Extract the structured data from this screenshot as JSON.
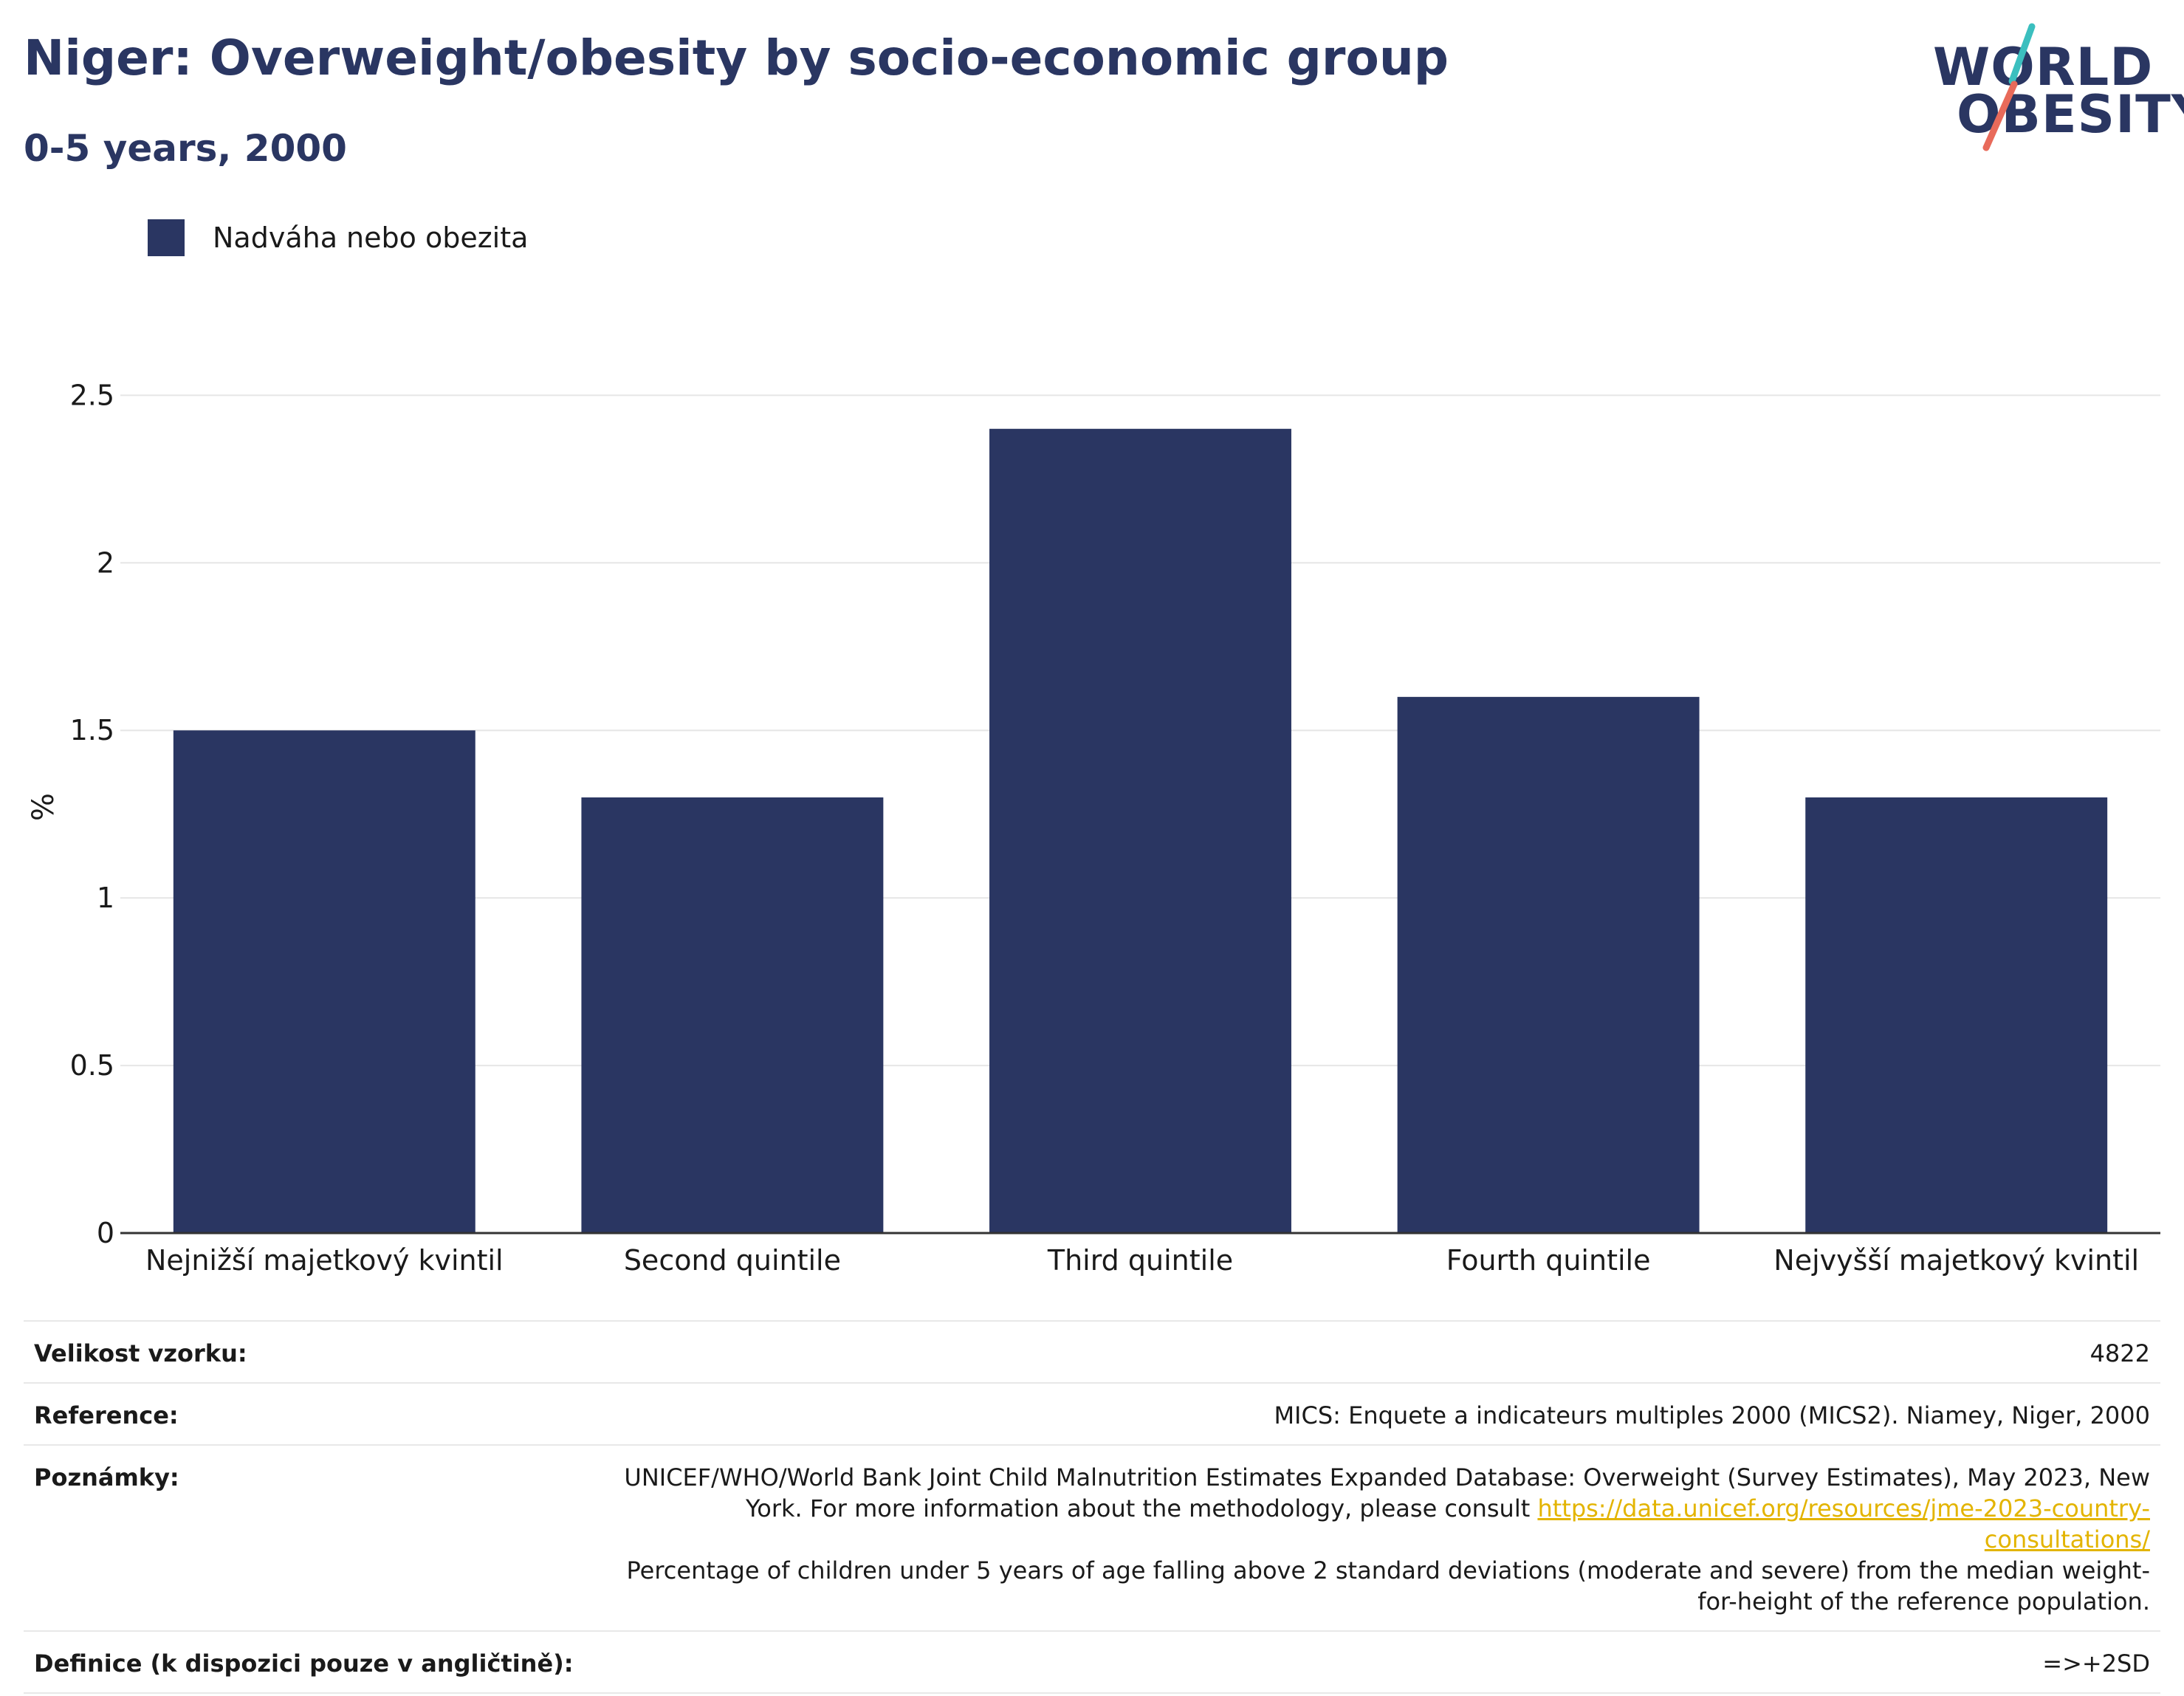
{
  "header": {
    "title": "Niger: Overweight/obesity by socio-economic group",
    "subtitle": "0-5 years, 2000"
  },
  "logo": {
    "line1": "WORLD",
    "line2": "OBESITY",
    "colors": {
      "text": "#2a3662",
      "teal": "#3bbfbf",
      "coral": "#e86a5a"
    }
  },
  "colors": {
    "bar": "#2a3662",
    "grid": "#e6e6e6",
    "axis": "#333333",
    "link": "#e3b400"
  },
  "legend": {
    "label": "Nadváha nebo obezita"
  },
  "chart_data": {
    "type": "bar",
    "categories": [
      "Nejnižší majetkový kvintil",
      "Second quintile",
      "Third quintile",
      "Fourth quintile",
      "Nejvyšší majetkový kvintil"
    ],
    "series": [
      {
        "name": "Nadváha nebo obezita",
        "values": [
          1.5,
          1.3,
          2.4,
          1.6,
          1.3
        ]
      }
    ],
    "ylabel": "%",
    "ylim": [
      0,
      2.6
    ],
    "yticks": [
      0,
      0.5,
      1,
      1.5,
      2,
      2.5
    ],
    "ytick_labels": [
      "0",
      "0.5",
      "1",
      "1.5",
      "2",
      "2.5"
    ],
    "grid": true,
    "legend_position": "top-left"
  },
  "info_table": {
    "sample_label": "Velikost vzorku:",
    "sample_value": "4822",
    "reference_label": "Reference:",
    "reference_value": "MICS: Enquete a indicateurs multiples 2000 (MICS2). Niamey, Niger, 2000",
    "notes_label": "Poznámky:",
    "notes_text_1": "UNICEF/WHO/World Bank Joint Child Malnutrition Estimates Expanded Database: Overweight (Survey Estimates), May 2023, New York. For more information about the methodology, please consult ",
    "notes_link": "https://data.unicef.org/resources/jme-2023-country-consultations/",
    "notes_text_2": "Percentage of children under 5 years of age falling above 2 standard deviations (moderate and severe) from the median weight-for-height of the reference population.",
    "definition_label": "Definice (k dispozici pouze v angličtině):",
    "definition_value": "=>+2SD"
  }
}
